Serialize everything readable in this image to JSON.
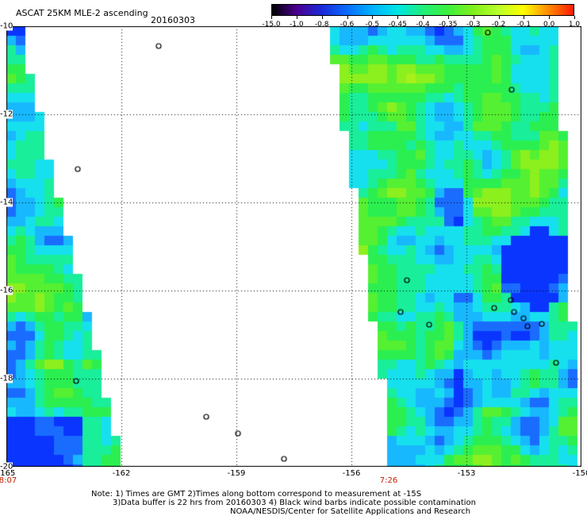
{
  "header": {
    "title": "ASCAT 25KM MLE-2 ascending",
    "date": "20160303"
  },
  "colorbar": {
    "labels": [
      "-15.0",
      "-1.0",
      "-0.8",
      "-0.6",
      "-0.5",
      "-0.45",
      "-0.4",
      "-0.35",
      "-0.3",
      "-0.2",
      "-0.1",
      "0.0",
      "1.0"
    ],
    "colors": [
      "#000000",
      "#4b0090",
      "#1a2bd9",
      "#0a6cff",
      "#00b3ff",
      "#00e5e5",
      "#1fef7a",
      "#3df03d",
      "#7fef1c",
      "#b8ff2a",
      "#ffff00",
      "#ff8a00",
      "#ff1a00"
    ]
  },
  "map": {
    "lat_labels": [
      "-10",
      "-12",
      "-14",
      "-16",
      "-18",
      "-20"
    ],
    "lon_labels": [
      "-165",
      "-162",
      "-159",
      "-156",
      "-153",
      "-150"
    ],
    "lat_range": [
      -10,
      -20
    ],
    "lon_range": [
      -165,
      -150
    ],
    "swath_times": [
      "8:07",
      "7:26"
    ]
  },
  "notes": {
    "line1": "Note: 1) Times are GMT 2)Times along bottom correspond to measurement at -15S",
    "line2": "3)Data buffer is 22 hrs from 20160303 4) Black wind barbs indicate possible contamination",
    "line3": "NOAA/NESDIS/Center for Satellite Applications and Research"
  }
}
